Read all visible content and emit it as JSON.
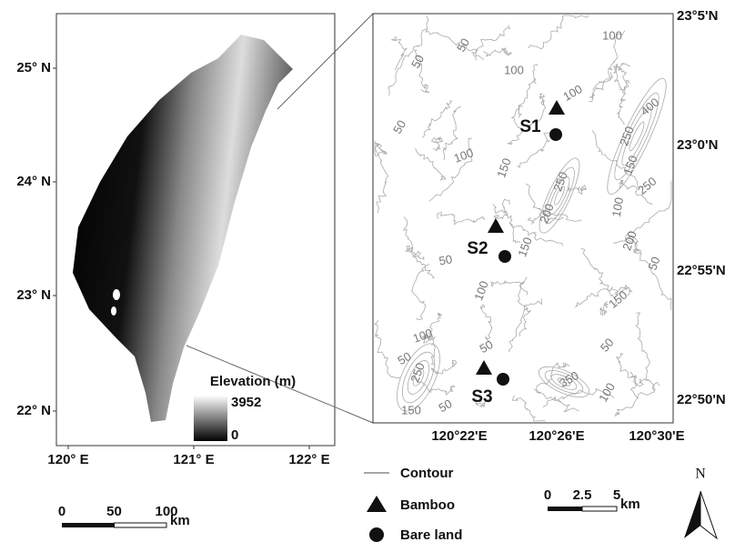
{
  "left_map": {
    "lat_labels": [
      "25° N",
      "24° N",
      "23° N",
      "22° N"
    ],
    "lon_labels": [
      "120° E",
      "121° E",
      "122° E"
    ],
    "elevation_legend": {
      "title": "Elevation (m)",
      "max": "3952",
      "min": "0"
    },
    "scale": {
      "labels": [
        "0",
        "50",
        "100"
      ],
      "unit": "km"
    }
  },
  "right_map": {
    "lat_labels": [
      "23°5'N",
      "23°0'N",
      "22°55'N",
      "22°50'N"
    ],
    "lon_labels": [
      "120°22'E",
      "120°26'E",
      "120°30'E"
    ],
    "contour_labels": [
      "50",
      "100",
      "50",
      "100",
      "100",
      "400",
      "50",
      "250",
      "150",
      "100",
      "150",
      "250",
      "250",
      "200",
      "100",
      "150",
      "50",
      "200",
      "50",
      "100",
      "150",
      "50",
      "100",
      "50",
      "50",
      "250",
      "350",
      "100",
      "150",
      "50"
    ],
    "sites": [
      {
        "label": "S1"
      },
      {
        "label": "S2"
      },
      {
        "label": "S3"
      }
    ],
    "scale": {
      "labels": [
        "0",
        "2.5",
        "5"
      ],
      "unit": "km"
    }
  },
  "legend": {
    "contour": "Contour",
    "bamboo": "Bamboo",
    "bare_land": "Bare land"
  },
  "north": "N"
}
